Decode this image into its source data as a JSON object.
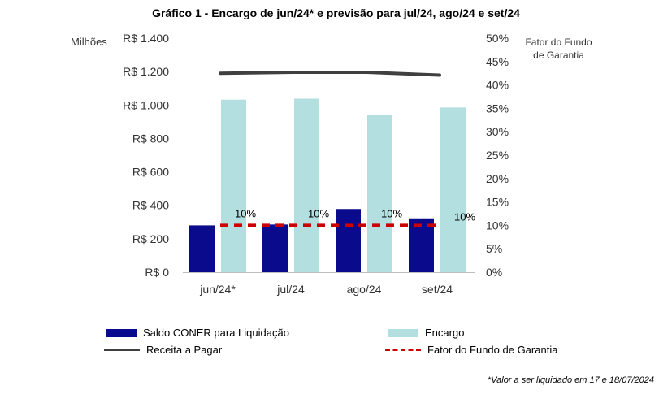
{
  "chart_data": {
    "type": "bar",
    "title": "Gráfico 1 - Encargo de jun/24* e previsão para jul/24, ago/24 e set/24",
    "categories": [
      "jun/24*",
      "jul/24",
      "ago/24",
      "set/24"
    ],
    "left_axis": {
      "unit_label": "Milhões",
      "ylim": [
        0,
        1400
      ],
      "ticks": [
        "R$ 0",
        "R$ 200",
        "R$ 400",
        "R$ 600",
        "R$ 800",
        "R$ 1.000",
        "R$ 1.200",
        "R$ 1.400"
      ],
      "tick_values": [
        0,
        200,
        400,
        600,
        800,
        1000,
        1200,
        1400
      ]
    },
    "right_axis": {
      "unit_label": "Fator do Fundo de Garantia",
      "ylim": [
        0,
        50
      ],
      "ticks": [
        "0%",
        "5%",
        "10%",
        "15%",
        "20%",
        "25%",
        "30%",
        "35%",
        "40%",
        "45%",
        "50%"
      ],
      "tick_values": [
        0,
        5,
        10,
        15,
        20,
        25,
        30,
        35,
        40,
        45,
        50
      ]
    },
    "series": [
      {
        "name": "Saldo CONER para Liquidação",
        "type": "bar",
        "axis": "left",
        "color": "#0a0a8c",
        "values": [
          280,
          285,
          378,
          322
        ]
      },
      {
        "name": "Encargo",
        "type": "bar",
        "axis": "left",
        "color": "#b4dfe0",
        "values": [
          1032,
          1038,
          940,
          985
        ]
      },
      {
        "name": "Receita a Pagar",
        "type": "line",
        "axis": "right",
        "color": "#404040",
        "values": [
          42.5,
          42.7,
          42.7,
          42.1
        ]
      },
      {
        "name": "Fator do Fundo de Garantia",
        "type": "dashed-line",
        "axis": "right",
        "color": "#cc0000",
        "values": [
          10,
          10,
          10,
          10
        ],
        "data_labels": [
          "10%",
          "10%",
          "10%",
          "10%"
        ]
      }
    ],
    "legend_position": "bottom",
    "grid": false
  },
  "footnote": "*Valor a ser liquidado em 17 e 18/07/2024"
}
